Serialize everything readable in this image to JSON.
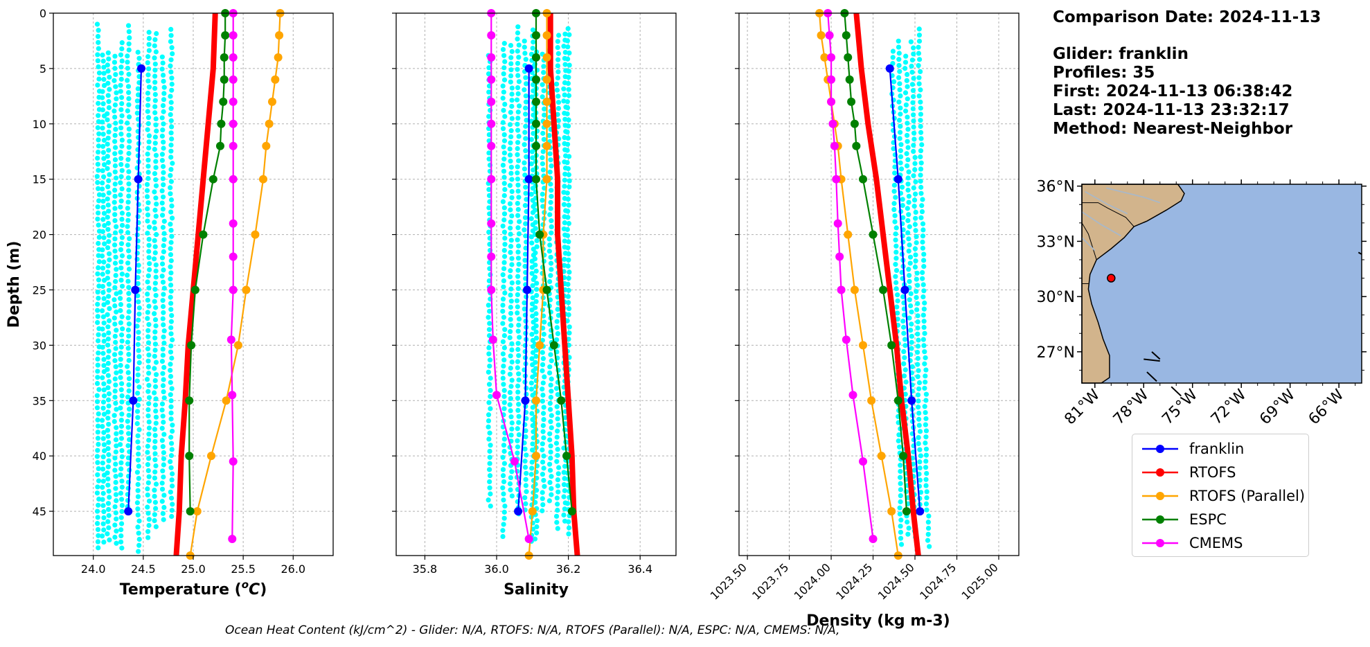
{
  "info": {
    "comparison_date": "Comparison Date: 2024-11-13",
    "glider": "Glider: franklin",
    "profiles": "Profiles: 35",
    "first": "First: 2024-11-13 06:38:42",
    "last": "Last: 2024-11-13 23:32:17",
    "method": "Method: Nearest-Neighbor"
  },
  "footer": "Ocean Heat Content (kJ/cm^2) - Glider: N/A,  RTOFS: N/A,  RTOFS (Parallel): N/A,  ESPC: N/A,  CMEMS: N/A,",
  "legend": [
    {
      "name": "franklin",
      "color": "#0000ff"
    },
    {
      "name": "RTOFS",
      "color": "#ff0000"
    },
    {
      "name": "RTOFS (Parallel)",
      "color": "#ffa500"
    },
    {
      "name": "ESPC",
      "color": "#008000"
    },
    {
      "name": "CMEMS",
      "color": "#ff00ff"
    }
  ],
  "chart_data": [
    {
      "type": "line",
      "xlabel": "Temperature (°C)",
      "ylabel": "Depth (m)",
      "xlim": [
        23.6,
        26.4
      ],
      "ylim": [
        49,
        0
      ],
      "xticks": [
        "24.0",
        "24.5",
        "25.0",
        "25.5",
        "26.0"
      ],
      "xtick_values": [
        24.0,
        24.5,
        25.0,
        25.5,
        26.0
      ],
      "yticks": [
        "0",
        "5",
        "10",
        "15",
        "20",
        "25",
        "30",
        "35",
        "40",
        "45"
      ],
      "grid": true,
      "scatter_columns": [
        24.05,
        24.1,
        24.15,
        24.22,
        24.28,
        24.35,
        24.45,
        24.55,
        24.62,
        24.7,
        24.78
      ],
      "series": [
        {
          "name": "franklin",
          "color": "#0000ff",
          "points": [
            [
              24.48,
              5
            ],
            [
              24.45,
              15
            ],
            [
              24.42,
              25
            ],
            [
              24.4,
              35
            ],
            [
              24.35,
              45
            ]
          ]
        },
        {
          "name": "RTOFS",
          "color": "#ff0000",
          "thick": true,
          "points": [
            [
              25.22,
              0
            ],
            [
              25.2,
              5
            ],
            [
              25.15,
              10
            ],
            [
              25.1,
              15
            ],
            [
              25.05,
              20
            ],
            [
              25.0,
              25
            ],
            [
              24.95,
              30
            ],
            [
              24.92,
              35
            ],
            [
              24.88,
              40
            ],
            [
              24.86,
              45
            ],
            [
              24.83,
              49
            ]
          ]
        },
        {
          "name": "RTOFS (Parallel)",
          "color": "#ffa500",
          "points": [
            [
              25.87,
              0
            ],
            [
              25.86,
              2
            ],
            [
              25.85,
              4
            ],
            [
              25.82,
              6
            ],
            [
              25.79,
              8
            ],
            [
              25.76,
              10
            ],
            [
              25.73,
              12
            ],
            [
              25.7,
              15
            ],
            [
              25.62,
              20
            ],
            [
              25.53,
              25
            ],
            [
              25.45,
              30
            ],
            [
              25.33,
              35
            ],
            [
              25.18,
              40
            ],
            [
              25.04,
              45
            ],
            [
              24.97,
              49
            ]
          ]
        },
        {
          "name": "ESPC",
          "color": "#008000",
          "points": [
            [
              25.32,
              0
            ],
            [
              25.32,
              2
            ],
            [
              25.31,
              4
            ],
            [
              25.31,
              6
            ],
            [
              25.3,
              8
            ],
            [
              25.28,
              10
            ],
            [
              25.27,
              12
            ],
            [
              25.2,
              15
            ],
            [
              25.1,
              20
            ],
            [
              25.02,
              25
            ],
            [
              24.98,
              30
            ],
            [
              24.96,
              35
            ],
            [
              24.96,
              40
            ],
            [
              24.97,
              45
            ]
          ]
        },
        {
          "name": "CMEMS",
          "color": "#ff00ff",
          "points": [
            [
              25.4,
              0
            ],
            [
              25.4,
              2
            ],
            [
              25.4,
              4
            ],
            [
              25.4,
              6
            ],
            [
              25.4,
              8
            ],
            [
              25.4,
              10
            ],
            [
              25.4,
              12
            ],
            [
              25.4,
              15
            ],
            [
              25.4,
              19
            ],
            [
              25.4,
              22
            ],
            [
              25.4,
              25
            ],
            [
              25.38,
              29.5
            ],
            [
              25.39,
              34.5
            ],
            [
              25.4,
              40.5
            ],
            [
              25.39,
              47.5
            ]
          ]
        }
      ]
    },
    {
      "type": "line",
      "xlabel": "Salinity",
      "ylabel": "",
      "xlim": [
        35.72,
        36.5
      ],
      "ylim": [
        49,
        0
      ],
      "xticks": [
        "35.8",
        "36.0",
        "36.2",
        "36.4"
      ],
      "xtick_values": [
        35.8,
        36.0,
        36.2,
        36.4
      ],
      "yticks": [],
      "grid": true,
      "scatter_columns": [
        35.98,
        36.02,
        36.04,
        36.06,
        36.08,
        36.1,
        36.11,
        36.13,
        36.15,
        36.17,
        36.19,
        36.2
      ],
      "series": [
        {
          "name": "franklin",
          "color": "#0000ff",
          "points": [
            [
              36.09,
              5
            ],
            [
              36.09,
              15
            ],
            [
              36.085,
              25
            ],
            [
              36.08,
              35
            ],
            [
              36.06,
              45
            ]
          ]
        },
        {
          "name": "RTOFS",
          "color": "#ff0000",
          "thick": true,
          "points": [
            [
              36.15,
              0
            ],
            [
              36.15,
              5
            ],
            [
              36.16,
              10
            ],
            [
              36.17,
              15
            ],
            [
              36.17,
              20
            ],
            [
              36.18,
              25
            ],
            [
              36.19,
              30
            ],
            [
              36.2,
              35
            ],
            [
              36.21,
              40
            ],
            [
              36.215,
              45
            ],
            [
              36.225,
              49
            ]
          ]
        },
        {
          "name": "RTOFS (Parallel)",
          "color": "#ffa500",
          "points": [
            [
              36.14,
              0
            ],
            [
              36.14,
              2
            ],
            [
              36.14,
              4
            ],
            [
              36.14,
              6
            ],
            [
              36.14,
              8
            ],
            [
              36.14,
              10
            ],
            [
              36.14,
              12
            ],
            [
              36.14,
              15
            ],
            [
              36.13,
              20
            ],
            [
              36.13,
              25
            ],
            [
              36.12,
              30
            ],
            [
              36.11,
              35
            ],
            [
              36.11,
              40
            ],
            [
              36.1,
              45
            ],
            [
              36.09,
              49
            ]
          ]
        },
        {
          "name": "ESPC",
          "color": "#008000",
          "points": [
            [
              36.11,
              0
            ],
            [
              36.11,
              2
            ],
            [
              36.11,
              4
            ],
            [
              36.11,
              6
            ],
            [
              36.11,
              8
            ],
            [
              36.11,
              10
            ],
            [
              36.11,
              12
            ],
            [
              36.11,
              15
            ],
            [
              36.12,
              20
            ],
            [
              36.14,
              25
            ],
            [
              36.16,
              30
            ],
            [
              36.18,
              35
            ],
            [
              36.195,
              40
            ],
            [
              36.21,
              45
            ]
          ]
        },
        {
          "name": "CMEMS",
          "color": "#ff00ff",
          "points": [
            [
              35.985,
              0
            ],
            [
              35.985,
              2
            ],
            [
              35.985,
              4
            ],
            [
              35.985,
              6
            ],
            [
              35.985,
              8
            ],
            [
              35.985,
              10
            ],
            [
              35.985,
              12
            ],
            [
              35.985,
              15
            ],
            [
              35.985,
              19
            ],
            [
              35.985,
              22
            ],
            [
              35.985,
              25
            ],
            [
              35.99,
              29.5
            ],
            [
              36.0,
              34.5
            ],
            [
              36.05,
              40.5
            ],
            [
              36.09,
              47.5
            ]
          ]
        }
      ]
    },
    {
      "type": "line",
      "xlabel": "Density (kg m-3)",
      "ylabel": "",
      "xlim": [
        1023.45,
        1025.12
      ],
      "ylim": [
        49,
        0
      ],
      "xticks": [
        "1023.50",
        "1023.75",
        "1024.00",
        "1024.25",
        "1024.50",
        "1024.75",
        "1025.00"
      ],
      "xtick_values": [
        1023.5,
        1023.75,
        1024.0,
        1024.25,
        1024.5,
        1024.75,
        1025.0
      ],
      "yticks": [],
      "grid": true,
      "scatter_columns": [
        1024.36,
        1024.4,
        1024.44,
        1024.48,
        1024.52
      ],
      "series": [
        {
          "name": "franklin",
          "color": "#0000ff",
          "points": [
            [
              1024.35,
              5
            ],
            [
              1024.4,
              15
            ],
            [
              1024.44,
              25
            ],
            [
              1024.48,
              35
            ],
            [
              1024.53,
              45
            ]
          ]
        },
        {
          "name": "RTOFS",
          "color": "#ff0000",
          "thick": true,
          "points": [
            [
              1024.15,
              0
            ],
            [
              1024.18,
              5
            ],
            [
              1024.22,
              10
            ],
            [
              1024.27,
              15
            ],
            [
              1024.31,
              20
            ],
            [
              1024.35,
              25
            ],
            [
              1024.39,
              30
            ],
            [
              1024.42,
              35
            ],
            [
              1024.46,
              40
            ],
            [
              1024.49,
              45
            ],
            [
              1024.52,
              49
            ]
          ]
        },
        {
          "name": "RTOFS (Parallel)",
          "color": "#ffa500",
          "points": [
            [
              1023.93,
              0
            ],
            [
              1023.94,
              2
            ],
            [
              1023.96,
              4
            ],
            [
              1023.98,
              6
            ],
            [
              1024.0,
              8
            ],
            [
              1024.02,
              10
            ],
            [
              1024.04,
              12
            ],
            [
              1024.06,
              15
            ],
            [
              1024.1,
              20
            ],
            [
              1024.14,
              25
            ],
            [
              1024.19,
              30
            ],
            [
              1024.24,
              35
            ],
            [
              1024.3,
              40
            ],
            [
              1024.36,
              45
            ],
            [
              1024.4,
              49
            ]
          ]
        },
        {
          "name": "ESPC",
          "color": "#008000",
          "points": [
            [
              1024.08,
              0
            ],
            [
              1024.09,
              2
            ],
            [
              1024.1,
              4
            ],
            [
              1024.11,
              6
            ],
            [
              1024.12,
              8
            ],
            [
              1024.14,
              10
            ],
            [
              1024.15,
              12
            ],
            [
              1024.19,
              15
            ],
            [
              1024.25,
              20
            ],
            [
              1024.31,
              25
            ],
            [
              1024.36,
              30
            ],
            [
              1024.4,
              35
            ],
            [
              1024.43,
              40
            ],
            [
              1024.45,
              45
            ]
          ]
        },
        {
          "name": "CMEMS",
          "color": "#ff00ff",
          "points": [
            [
              1023.98,
              0
            ],
            [
              1023.99,
              2
            ],
            [
              1024.0,
              4
            ],
            [
              1024.0,
              6
            ],
            [
              1024.0,
              8
            ],
            [
              1024.01,
              10
            ],
            [
              1024.02,
              12
            ],
            [
              1024.03,
              15
            ],
            [
              1024.04,
              19
            ],
            [
              1024.05,
              22
            ],
            [
              1024.06,
              25
            ],
            [
              1024.09,
              29.5
            ],
            [
              1024.13,
              34.5
            ],
            [
              1024.19,
              40.5
            ],
            [
              1024.25,
              47.5
            ]
          ]
        }
      ]
    },
    {
      "type": "map",
      "lat_ticks": [
        "36°N",
        "33°N",
        "30°N",
        "27°N"
      ],
      "lat_values": [
        36,
        33,
        30,
        27
      ],
      "lon_ticks": [
        "81°W",
        "78°W",
        "75°W",
        "72°W",
        "69°W",
        "66°W"
      ],
      "lon_values": [
        -81,
        -78,
        -75,
        -72,
        -69,
        -66
      ],
      "lat_range": [
        25.3,
        36.1
      ],
      "lon_range": [
        -81.8,
        -64.6
      ],
      "marker": {
        "lat": 31.0,
        "lon": -80.0,
        "color": "#ff0000"
      },
      "colors": {
        "land": "#d2b48c",
        "ocean": "#99b7e2"
      }
    }
  ]
}
